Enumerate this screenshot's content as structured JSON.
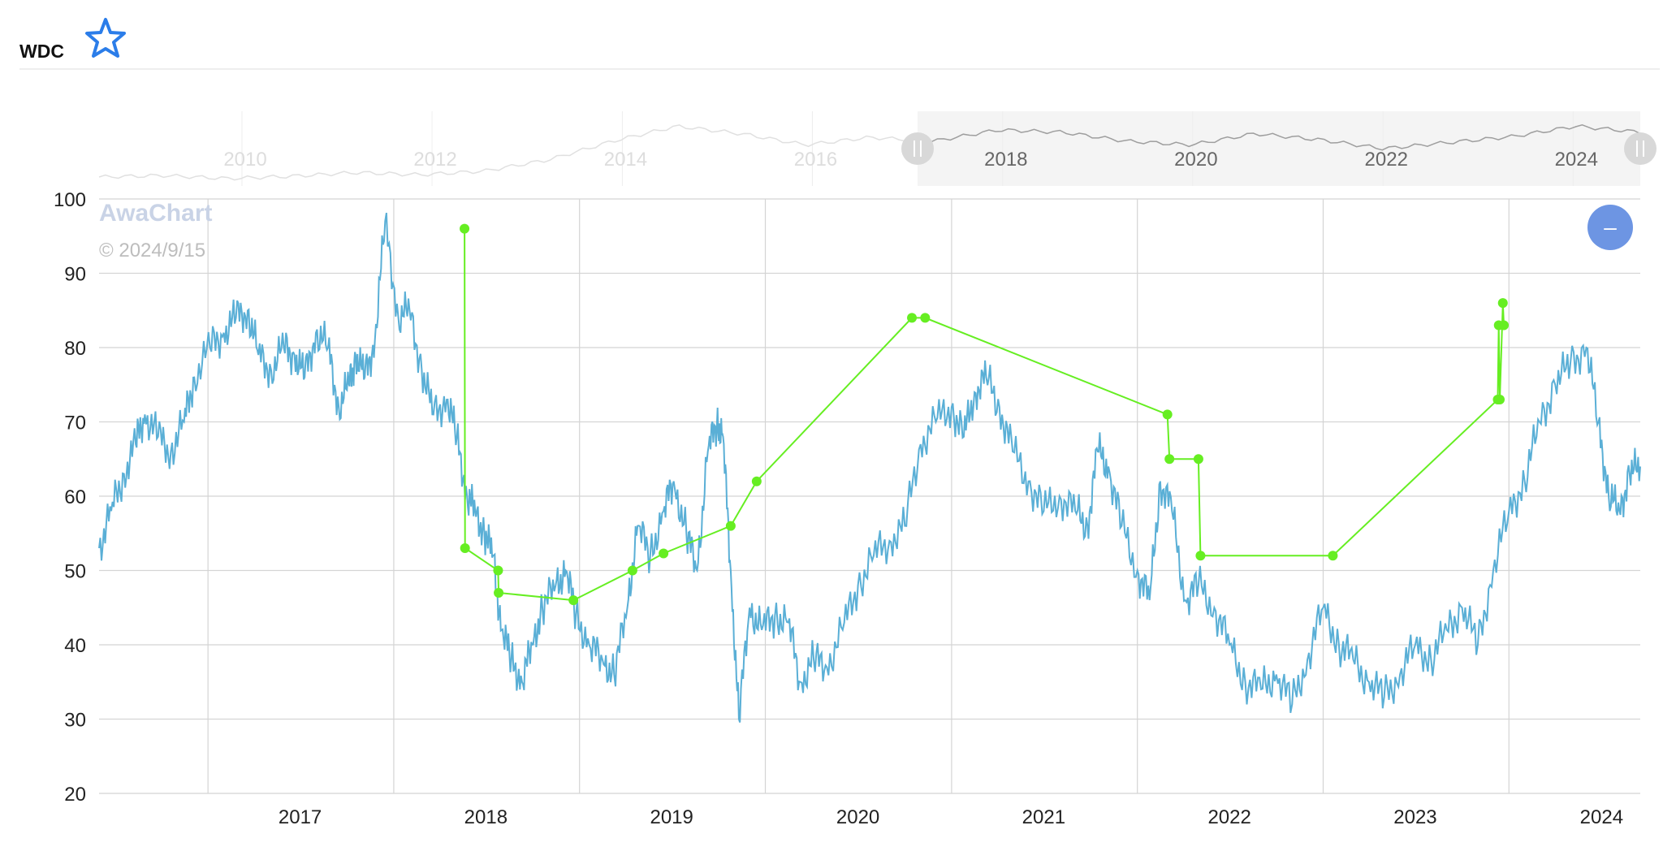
{
  "header": {
    "ticker": "WDC",
    "favorite_icon": "star-outline-icon"
  },
  "watermark": {
    "brand": "AwaChart",
    "date": "© 2024/9/15"
  },
  "controls": {
    "zoom_out_icon": "minus-icon",
    "zoom_out_label": "–"
  },
  "navigator": {
    "year_labels": [
      "2010",
      "2012",
      "2014",
      "2016",
      "2018",
      "2020",
      "2022",
      "2024"
    ],
    "selected_range": [
      "2017",
      "2024"
    ]
  },
  "chart_data": {
    "type": "line",
    "title": "",
    "ylim": [
      20,
      100
    ],
    "y_ticks": [
      100,
      90,
      80,
      70,
      60,
      50,
      40,
      30,
      20
    ],
    "xlim": [
      "2016-06-01",
      "2024-09-15"
    ],
    "x_tick_labels": [
      "2017",
      "2018",
      "2019",
      "2020",
      "2021",
      "2022",
      "2023",
      "2024"
    ],
    "grid": true,
    "colors": {
      "price": "#5aafd6",
      "markers": "#66ee22",
      "navigator_line": "#aaaaaa",
      "zoom_button": "#6d95e3",
      "star": "#2b7de9"
    },
    "series": [
      {
        "x": [
          "2016-06-01",
          "2016-06-25",
          "2016-07-20",
          "2016-08-12",
          "2016-08-30",
          "2016-09-25",
          "2016-10-20",
          "2016-11-15",
          "2016-12-05",
          "2017-01-05",
          "2017-02-01",
          "2017-02-25",
          "2017-03-20",
          "2017-04-10",
          "2017-05-05",
          "2017-05-30",
          "2017-06-20",
          "2017-07-10",
          "2017-08-01",
          "2017-08-25",
          "2017-09-15",
          "2017-10-05",
          "2017-10-18",
          "2017-11-05",
          "2017-11-25",
          "2017-12-15",
          "2018-01-10",
          "2018-02-01",
          "2018-02-25",
          "2018-03-20",
          "2018-04-15",
          "2018-05-05",
          "2018-05-25",
          "2018-06-10",
          "2018-06-28",
          "2018-07-15",
          "2018-08-01",
          "2018-08-20",
          "2018-09-10",
          "2018-09-30",
          "2018-10-20",
          "2018-11-15",
          "2018-12-05",
          "2018-12-25",
          "2019-01-20",
          "2019-02-15",
          "2019-03-10",
          "2019-04-05",
          "2019-04-25",
          "2019-05-20",
          "2019-06-15",
          "2019-07-05",
          "2019-07-30",
          "2019-08-20",
          "2019-09-10",
          "2019-09-28",
          "2019-10-10",
          "2019-10-25",
          "2019-11-10",
          "2019-12-01",
          "2019-12-25",
          "2020-01-20",
          "2020-02-15",
          "2020-03-10",
          "2020-04-05",
          "2020-05-01",
          "2020-06-01",
          "2020-07-01",
          "2020-08-01",
          "2020-09-01",
          "2020-10-01",
          "2020-11-01",
          "2020-12-01",
          "2021-01-01",
          "2021-01-25",
          "2021-02-15",
          "2021-03-10",
          "2021-04-05",
          "2021-05-01",
          "2021-06-01",
          "2021-07-01",
          "2021-08-01",
          "2021-09-01",
          "2021-09-25",
          "2021-10-15",
          "2021-11-05",
          "2021-12-01",
          "2022-01-01",
          "2022-01-25",
          "2022-02-15",
          "2022-03-10",
          "2022-04-05",
          "2022-05-01",
          "2022-06-01",
          "2022-07-01",
          "2022-08-01",
          "2022-09-01",
          "2022-10-01",
          "2022-11-01",
          "2022-12-01",
          "2023-01-01",
          "2023-02-01",
          "2023-03-01",
          "2023-04-01",
          "2023-05-01",
          "2023-06-01",
          "2023-07-01",
          "2023-08-01",
          "2023-09-01",
          "2023-10-01",
          "2023-11-01",
          "2023-12-01",
          "2024-01-01",
          "2024-02-01",
          "2024-03-01",
          "2024-04-01",
          "2024-05-01",
          "2024-06-01",
          "2024-06-25",
          "2024-07-15",
          "2024-08-05",
          "2024-08-25",
          "2024-09-15"
        ],
        "values": [
          53,
          58,
          63,
          67,
          71,
          68,
          66,
          70,
          76,
          80,
          82,
          84,
          85,
          79,
          77,
          80,
          79,
          76,
          82,
          80,
          72,
          75,
          79,
          76,
          81,
          97,
          84,
          85,
          77,
          71,
          73,
          68,
          60,
          58,
          55,
          52,
          42,
          38,
          35,
          40,
          45,
          48,
          50,
          44,
          40,
          38,
          36,
          45,
          56,
          52,
          58,
          62,
          55,
          50,
          66,
          70,
          68,
          50,
          30,
          45,
          42,
          44,
          43,
          35,
          38,
          37,
          42,
          48,
          52,
          54,
          56,
          67,
          70,
          72,
          68,
          74,
          76,
          72,
          66,
          62,
          58,
          60,
          58,
          56,
          66,
          64,
          56,
          50,
          46,
          62,
          58,
          46,
          48,
          45,
          40,
          35,
          34,
          36,
          32,
          38,
          45,
          40,
          38,
          35,
          33,
          36,
          40,
          38,
          42,
          45,
          40,
          50,
          58,
          62,
          70,
          75,
          78,
          80,
          70,
          60,
          58,
          63,
          64
        ]
      },
      {
        "x": [
          "2018-05-20",
          "2018-05-21",
          "2018-07-25",
          "2018-07-26",
          "2018-12-20",
          "2019-04-15",
          "2019-06-15",
          "2019-10-25",
          "2019-12-15",
          "2020-10-15",
          "2020-11-10",
          "2022-03-01",
          "2022-03-05",
          "2022-05-01",
          "2022-05-05",
          "2023-01-20",
          "2023-12-10",
          "2023-12-12",
          "2023-12-14",
          "2023-12-20",
          "2023-12-22"
        ],
        "values": [
          96,
          53,
          50,
          47,
          46,
          50,
          52.3,
          56,
          62,
          84,
          84,
          71,
          65,
          65,
          52,
          52,
          73,
          83,
          73,
          86,
          83
        ]
      }
    ]
  }
}
